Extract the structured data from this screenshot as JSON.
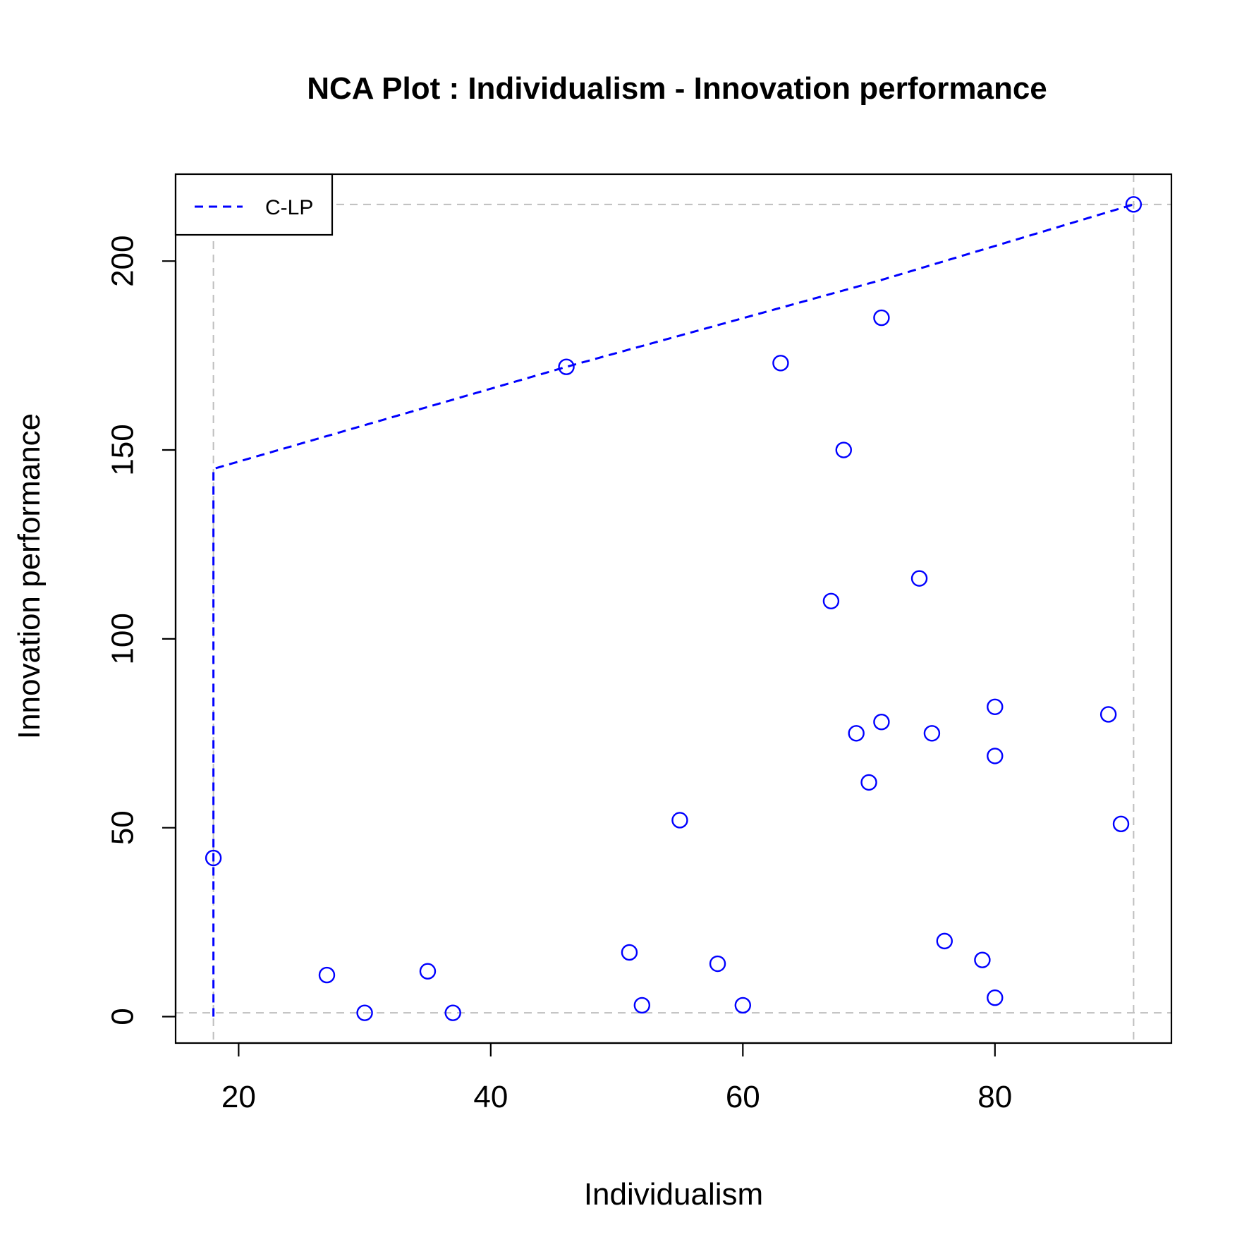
{
  "chart_data": {
    "type": "scatter",
    "title": "NCA Plot : Individualism - Innovation performance",
    "xlabel": "Individualism",
    "ylabel": "Innovation performance",
    "xlim": [
      15,
      94
    ],
    "ylim": [
      -7,
      223
    ],
    "xticks": [
      20,
      40,
      60,
      80
    ],
    "yticks": [
      0,
      50,
      100,
      150,
      200
    ],
    "grid": false,
    "legend": {
      "placement": "top-left",
      "entries": [
        {
          "label": "C-LP",
          "color": "#0000ff",
          "style": "dashed"
        }
      ]
    },
    "points_color": "#0000ff",
    "points": [
      {
        "x": 18,
        "y": 42
      },
      {
        "x": 27,
        "y": 11
      },
      {
        "x": 30,
        "y": 1
      },
      {
        "x": 35,
        "y": 12
      },
      {
        "x": 37,
        "y": 1
      },
      {
        "x": 46,
        "y": 172
      },
      {
        "x": 51,
        "y": 17
      },
      {
        "x": 52,
        "y": 3
      },
      {
        "x": 55,
        "y": 52
      },
      {
        "x": 58,
        "y": 14
      },
      {
        "x": 60,
        "y": 3
      },
      {
        "x": 63,
        "y": 173
      },
      {
        "x": 67,
        "y": 110
      },
      {
        "x": 68,
        "y": 150
      },
      {
        "x": 69,
        "y": 75
      },
      {
        "x": 70,
        "y": 62
      },
      {
        "x": 71,
        "y": 185
      },
      {
        "x": 71,
        "y": 78
      },
      {
        "x": 74,
        "y": 116
      },
      {
        "x": 75,
        "y": 75
      },
      {
        "x": 76,
        "y": 20
      },
      {
        "x": 79,
        "y": 15
      },
      {
        "x": 80,
        "y": 82
      },
      {
        "x": 80,
        "y": 69
      },
      {
        "x": 80,
        "y": 5
      },
      {
        "x": 89,
        "y": 80
      },
      {
        "x": 90,
        "y": 51
      },
      {
        "x": 91,
        "y": 215
      }
    ],
    "ceiling_line": {
      "name": "C-LP",
      "color": "#0000ff",
      "style": "dashed",
      "points": [
        {
          "x": 18,
          "y": 0
        },
        {
          "x": 18,
          "y": 145
        },
        {
          "x": 46,
          "y": 172
        },
        {
          "x": 71,
          "y": 195
        },
        {
          "x": 91,
          "y": 215
        }
      ]
    },
    "reference_lines": {
      "color": "#bebebe",
      "style": "dashed",
      "vertical_x": [
        18,
        91
      ],
      "horizontal_y": [
        1,
        215
      ]
    }
  }
}
